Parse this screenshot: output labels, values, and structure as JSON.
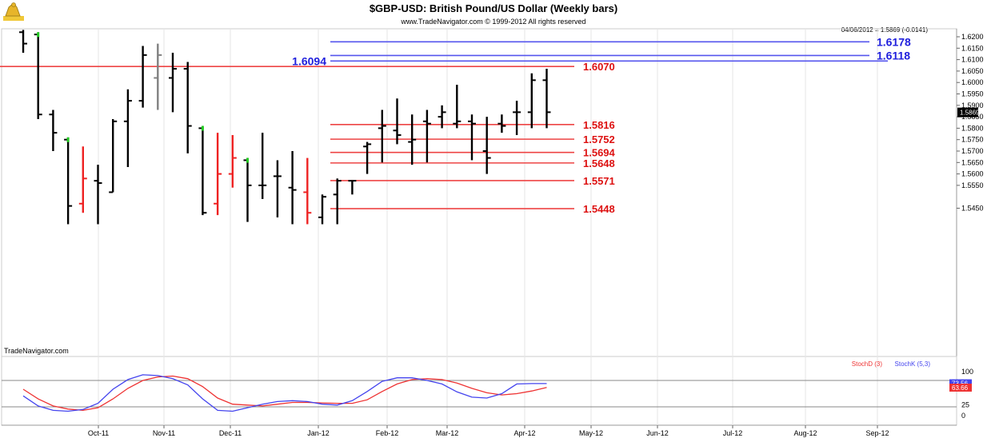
{
  "header": {
    "title": "$GBP-USD:  British Pound/US Dollar  (Weekly bars)",
    "copyright": "www.TradeNavigator.com © 1999-2012 All rights reserved",
    "readout": "04/06/2012 = 1.5869 (-0.0141)",
    "watermark": "TradeNavigator.com",
    "logo_icon": "cannon-logo-icon"
  },
  "chart_data": [
    {
      "type": "ohlc",
      "ylim": [
        1.538,
        1.624
      ],
      "y_ticks": [
        "1.6200",
        "1.6150",
        "1.6100",
        "1.6050",
        "1.6000",
        "1.5950",
        "1.5900",
        "1.5850",
        "1.5800",
        "1.5750",
        "1.5700",
        "1.5650",
        "1.5600",
        "1.5550",
        "1.5450"
      ],
      "y_tick_values": [
        1.62,
        1.615,
        1.61,
        1.605,
        1.6,
        1.595,
        1.59,
        1.585,
        1.58,
        1.575,
        1.57,
        1.565,
        1.56,
        1.555,
        1.545
      ],
      "current_price_label": "1.5869",
      "current_price": 1.5869,
      "x_ticks": [
        "Oct-11",
        "Nov-11",
        "Dec-11",
        "Jan-12",
        "Feb-12",
        "Mar-12",
        "Apr-12",
        "May-12",
        "Jun-12",
        "Jul-12",
        "Aug-12",
        "Sep-12"
      ],
      "bars": [
        {
          "o": 1.622,
          "h": 1.623,
          "l": 1.613,
          "c": 1.617,
          "color": "#000000"
        },
        {
          "o": 1.621,
          "h": 1.622,
          "l": 1.584,
          "c": 1.586,
          "color": "#000000",
          "tick": "#22cc22"
        },
        {
          "o": 1.586,
          "h": 1.588,
          "l": 1.57,
          "c": 1.578,
          "color": "#000000"
        },
        {
          "o": 1.575,
          "h": 1.576,
          "l": 1.538,
          "c": 1.546,
          "color": "#000000",
          "tick": "#22cc22"
        },
        {
          "o": 1.547,
          "h": 1.572,
          "l": 1.543,
          "c": 1.558,
          "color": "#ee2222"
        },
        {
          "o": 1.557,
          "h": 1.564,
          "l": 1.538,
          "c": 1.556,
          "color": "#000000"
        },
        {
          "o": 1.552,
          "h": 1.584,
          "l": 1.552,
          "c": 1.583,
          "color": "#000000"
        },
        {
          "o": 1.583,
          "h": 1.597,
          "l": 1.563,
          "c": 1.592,
          "color": "#000000"
        },
        {
          "o": 1.592,
          "h": 1.616,
          "l": 1.589,
          "c": 1.612,
          "color": "#000000"
        },
        {
          "o": 1.602,
          "h": 1.617,
          "l": 1.588,
          "c": 1.612,
          "color": "#808080"
        },
        {
          "o": 1.602,
          "h": 1.613,
          "l": 1.587,
          "c": 1.606,
          "color": "#000000"
        },
        {
          "o": 1.606,
          "h": 1.609,
          "l": 1.569,
          "c": 1.581,
          "color": "#000000"
        },
        {
          "o": 1.58,
          "h": 1.581,
          "l": 1.542,
          "c": 1.543,
          "color": "#000000",
          "tick": "#22cc22"
        },
        {
          "o": 1.547,
          "h": 1.578,
          "l": 1.542,
          "c": 1.56,
          "color": "#ee2222"
        },
        {
          "o": 1.56,
          "h": 1.577,
          "l": 1.554,
          "c": 1.567,
          "color": "#ee2222"
        },
        {
          "o": 1.566,
          "h": 1.567,
          "l": 1.539,
          "c": 1.555,
          "color": "#000000",
          "tick": "#22cc22"
        },
        {
          "o": 1.555,
          "h": 1.578,
          "l": 1.549,
          "c": 1.555,
          "color": "#000000"
        },
        {
          "o": 1.559,
          "h": 1.566,
          "l": 1.541,
          "c": 1.559,
          "color": "#000000"
        },
        {
          "o": 1.554,
          "h": 1.57,
          "l": 1.538,
          "c": 1.553,
          "color": "#000000"
        },
        {
          "o": 1.552,
          "h": 1.567,
          "l": 1.538,
          "c": 1.543,
          "color": "#ee2222"
        },
        {
          "o": 1.541,
          "h": 1.551,
          "l": 1.538,
          "c": 1.55,
          "color": "#000000"
        },
        {
          "o": 1.551,
          "h": 1.558,
          "l": 1.538,
          "c": 1.557,
          "color": "#000000"
        },
        {
          "o": 1.557,
          "h": 1.557,
          "l": 1.551,
          "c": 1.557,
          "color": "#000000"
        },
        {
          "o": 1.572,
          "h": 1.574,
          "l": 1.56,
          "c": 1.573,
          "color": "#000000"
        },
        {
          "o": 1.58,
          "h": 1.588,
          "l": 1.565,
          "c": 1.581,
          "color": "#000000"
        },
        {
          "o": 1.579,
          "h": 1.593,
          "l": 1.573,
          "c": 1.577,
          "color": "#000000"
        },
        {
          "o": 1.574,
          "h": 1.586,
          "l": 1.564,
          "c": 1.575,
          "color": "#000000"
        },
        {
          "o": 1.583,
          "h": 1.588,
          "l": 1.565,
          "c": 1.582,
          "color": "#000000"
        },
        {
          "o": 1.585,
          "h": 1.59,
          "l": 1.58,
          "c": 1.587,
          "color": "#000000"
        },
        {
          "o": 1.582,
          "h": 1.599,
          "l": 1.58,
          "c": 1.583,
          "color": "#000000"
        },
        {
          "o": 1.583,
          "h": 1.586,
          "l": 1.566,
          "c": 1.582,
          "color": "#000000"
        },
        {
          "o": 1.57,
          "h": 1.585,
          "l": 1.56,
          "c": 1.567,
          "color": "#000000"
        },
        {
          "o": 1.582,
          "h": 1.586,
          "l": 1.578,
          "c": 1.581,
          "color": "#000000"
        },
        {
          "o": 1.587,
          "h": 1.592,
          "l": 1.577,
          "c": 1.587,
          "color": "#000000"
        },
        {
          "o": 1.587,
          "h": 1.604,
          "l": 1.58,
          "c": 1.601,
          "color": "#000000"
        },
        {
          "o": 1.601,
          "h": 1.606,
          "l": 1.58,
          "c": 1.587,
          "color": "#000000"
        }
      ],
      "levels": [
        {
          "value": 1.6178,
          "label": "1.6178",
          "color": "#5555ee",
          "label_color": "#2020dd",
          "side": "right"
        },
        {
          "value": 1.6118,
          "label": "1.6118",
          "color": "#5555ee",
          "label_color": "#2020dd",
          "side": "right"
        },
        {
          "value": 1.6094,
          "label": "1.6094",
          "color": "#5555ee",
          "label_color": "#2020dd",
          "side": "left"
        },
        {
          "value": 1.607,
          "label": "1.6070",
          "color": "#ee4444",
          "label_color": "#dd1111",
          "side": "right"
        },
        {
          "value": 1.5816,
          "label": "1.5816",
          "color": "#ee4444",
          "label_color": "#dd1111",
          "side": "right"
        },
        {
          "value": 1.5752,
          "label": "1.5752",
          "color": "#ee4444",
          "label_color": "#dd1111",
          "side": "right"
        },
        {
          "value": 1.5694,
          "label": "1.5694",
          "color": "#ee4444",
          "label_color": "#dd1111",
          "side": "right"
        },
        {
          "value": 1.5648,
          "label": "1.5648",
          "color": "#ee4444",
          "label_color": "#dd1111",
          "side": "right"
        },
        {
          "value": 1.5571,
          "label": "1.5571",
          "color": "#ee4444",
          "label_color": "#dd1111",
          "side": "right"
        },
        {
          "value": 1.5448,
          "label": "1.5448",
          "color": "#ee4444",
          "label_color": "#dd1111",
          "side": "right"
        }
      ]
    },
    {
      "type": "line",
      "ylim": [
        0,
        100
      ],
      "y_ticks": [
        "100",
        "75",
        "25",
        "0"
      ],
      "y_tick_values": [
        100,
        75,
        25,
        0
      ],
      "reference_lines": [
        80,
        20
      ],
      "series": [
        {
          "name": "StochD (3)",
          "color": "#ee3333",
          "values": [
            60,
            38,
            22,
            15,
            12,
            18,
            38,
            62,
            80,
            88,
            90,
            84,
            66,
            40,
            26,
            24,
            22,
            26,
            30,
            30,
            29,
            28,
            28,
            36,
            55,
            72,
            82,
            84,
            82,
            74,
            62,
            52,
            47,
            50,
            56,
            64
          ]
        },
        {
          "name": "StochK (5,3)",
          "color": "#4444ee",
          "values": [
            45,
            22,
            12,
            10,
            14,
            28,
            60,
            82,
            93,
            91,
            84,
            70,
            38,
            12,
            10,
            18,
            26,
            32,
            34,
            32,
            26,
            24,
            34,
            55,
            78,
            86,
            86,
            80,
            72,
            54,
            42,
            40,
            50,
            72,
            73,
            73
          ]
        }
      ],
      "last_value_labels": [
        {
          "text": "73.56",
          "value": 73.56,
          "bg": "#4444ee"
        },
        {
          "text": "63.66",
          "value": 63.66,
          "bg": "#ee3333"
        }
      ]
    }
  ]
}
